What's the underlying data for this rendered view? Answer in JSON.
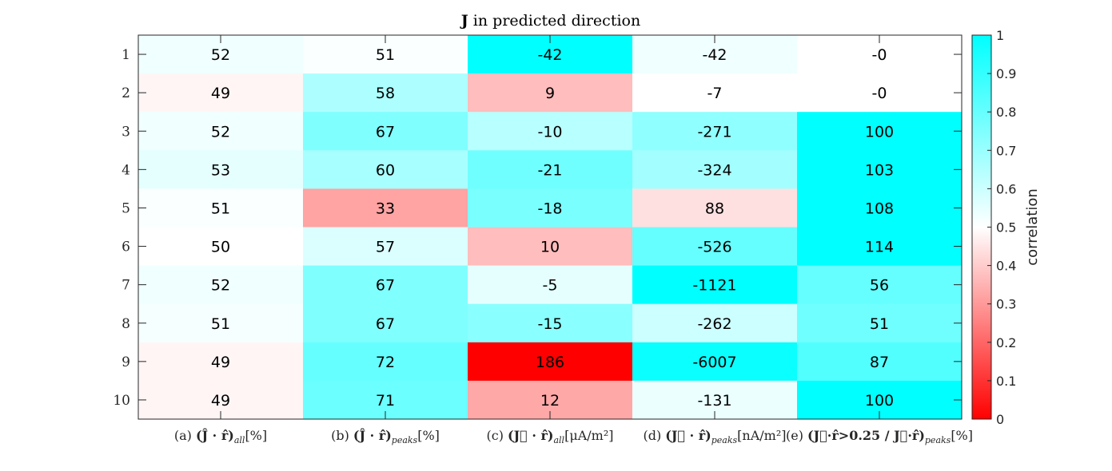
{
  "chart_data": {
    "type": "heatmap",
    "title": "J in predicted direction",
    "title_bold": "J",
    "title_rest": " in predicted direction",
    "rows": [
      "1",
      "2",
      "3",
      "4",
      "5",
      "6",
      "7",
      "8",
      "9",
      "10"
    ],
    "columns": [
      {
        "prefix": "(a) ",
        "label": "(Ĵ · r̂)",
        "sub": "all",
        "unit": "[%]"
      },
      {
        "prefix": "(b) ",
        "label": "(Ĵ · r̂)",
        "sub": "peaks",
        "unit": "[%]"
      },
      {
        "prefix": "(c) ",
        "label": "(J⃗ · r̂)",
        "sub": "all",
        "unit": "[μA/m²]"
      },
      {
        "prefix": "(d) ",
        "label": "(J⃗ · r̂)",
        "sub": "peaks",
        "unit": "[nA/m²]"
      },
      {
        "prefix": "(e) ",
        "label": "(J⃗·r̂>0.25 / J⃗·r̂)",
        "sub": "peaks",
        "unit": "[%]"
      }
    ],
    "cell_labels": [
      [
        "52",
        "51",
        "-42",
        "-42",
        "-0"
      ],
      [
        "49",
        "58",
        "9",
        "-7",
        "-0"
      ],
      [
        "52",
        "67",
        "-10",
        "-271",
        "100"
      ],
      [
        "53",
        "60",
        "-21",
        "-324",
        "103"
      ],
      [
        "51",
        "33",
        "-18",
        "88",
        "108"
      ],
      [
        "50",
        "57",
        "10",
        "-526",
        "114"
      ],
      [
        "52",
        "67",
        "-5",
        "-1121",
        "56"
      ],
      [
        "51",
        "67",
        "-15",
        "-262",
        "51"
      ],
      [
        "49",
        "72",
        "186",
        "-6007",
        "87"
      ],
      [
        "49",
        "71",
        "12",
        "-131",
        "100"
      ]
    ],
    "correlation": [
      [
        0.53,
        0.51,
        1.0,
        0.53,
        0.5
      ],
      [
        0.48,
        0.66,
        0.37,
        0.5,
        0.5
      ],
      [
        0.53,
        0.75,
        0.64,
        0.72,
        1.0
      ],
      [
        0.55,
        0.67,
        0.78,
        0.68,
        1.0
      ],
      [
        0.51,
        0.32,
        0.76,
        0.44,
        1.0
      ],
      [
        0.5,
        0.57,
        0.37,
        0.8,
        1.0
      ],
      [
        0.53,
        0.75,
        0.55,
        1.0,
        0.8
      ],
      [
        0.52,
        0.75,
        0.73,
        0.6,
        0.78
      ],
      [
        0.48,
        0.8,
        0.0,
        0.98,
        0.84
      ],
      [
        0.48,
        0.79,
        0.33,
        0.54,
        1.0
      ]
    ],
    "colorbar": {
      "label": "correlation",
      "range": [
        0,
        1
      ],
      "ticks": [
        "0",
        "0.1",
        "0.2",
        "0.3",
        "0.4",
        "0.5",
        "0.6",
        "0.7",
        "0.8",
        "0.9",
        "1"
      ],
      "low_color": "#ff0000",
      "mid_color": "#ffffff",
      "high_color": "#00ffff"
    }
  }
}
